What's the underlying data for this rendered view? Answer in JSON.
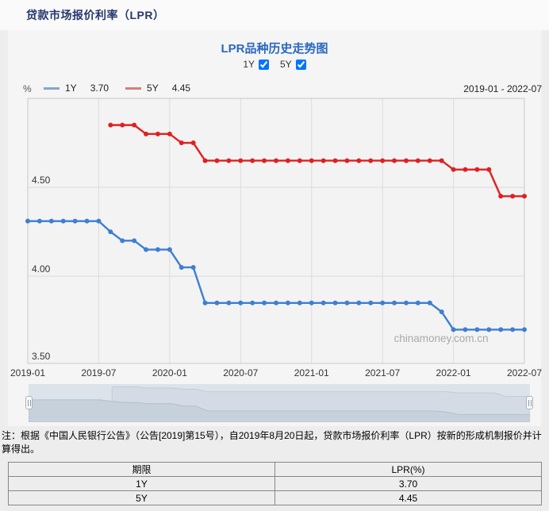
{
  "page": {
    "title": "贷款市场报价利率（LPR）"
  },
  "chart_panel": {
    "title": "LPR品种历史走势图",
    "checkboxes": [
      {
        "label": "1Y",
        "checked": true
      },
      {
        "label": "5Y",
        "checked": true
      }
    ],
    "unit_label": "%",
    "legend": [
      {
        "name": "1Y",
        "value": "3.70",
        "color": "#84a4d3"
      },
      {
        "name": "5Y",
        "value": "4.45",
        "color": "#d97c7c"
      }
    ],
    "date_range": "2019-01 - 2022-07",
    "watermark": "chinamoney.com.cn"
  },
  "chart_data": {
    "type": "line",
    "title": "LPR品种历史走势图",
    "ylabel": "%",
    "xlabel": "",
    "grid": true,
    "legend_position": "top",
    "ylim": [
      3.51,
      5.0
    ],
    "yticks": [
      3.5,
      4.0,
      4.5
    ],
    "ytick_labels": [
      "3.50",
      "4.00",
      "4.50"
    ],
    "xticks": [
      "2019-01",
      "2019-07",
      "2020-01",
      "2020-07",
      "2021-01",
      "2021-07",
      "2022-01",
      "2022-07"
    ],
    "x": [
      "2019-01",
      "2019-02",
      "2019-03",
      "2019-04",
      "2019-05",
      "2019-06",
      "2019-07",
      "2019-08",
      "2019-09",
      "2019-10",
      "2019-11",
      "2019-12",
      "2020-01",
      "2020-02",
      "2020-03",
      "2020-04",
      "2020-05",
      "2020-06",
      "2020-07",
      "2020-08",
      "2020-09",
      "2020-10",
      "2020-11",
      "2020-12",
      "2021-01",
      "2021-02",
      "2021-03",
      "2021-04",
      "2021-05",
      "2021-06",
      "2021-07",
      "2021-08",
      "2021-09",
      "2021-10",
      "2021-11",
      "2021-12",
      "2022-01",
      "2022-02",
      "2022-03",
      "2022-04",
      "2022-05",
      "2022-06",
      "2022-07"
    ],
    "series": [
      {
        "name": "1Y",
        "color": "#3e7fd0",
        "values": [
          4.31,
          4.31,
          4.31,
          4.31,
          4.31,
          4.31,
          4.31,
          4.25,
          4.2,
          4.2,
          4.15,
          4.15,
          4.15,
          4.05,
          4.05,
          3.85,
          3.85,
          3.85,
          3.85,
          3.85,
          3.85,
          3.85,
          3.85,
          3.85,
          3.85,
          3.85,
          3.85,
          3.85,
          3.85,
          3.85,
          3.85,
          3.85,
          3.85,
          3.85,
          3.85,
          3.8,
          3.7,
          3.7,
          3.7,
          3.7,
          3.7,
          3.7,
          3.7
        ]
      },
      {
        "name": "5Y",
        "color": "#e02020",
        "values": [
          null,
          null,
          null,
          null,
          null,
          null,
          null,
          4.85,
          4.85,
          4.85,
          4.8,
          4.8,
          4.8,
          4.75,
          4.75,
          4.65,
          4.65,
          4.65,
          4.65,
          4.65,
          4.65,
          4.65,
          4.65,
          4.65,
          4.65,
          4.65,
          4.65,
          4.65,
          4.65,
          4.65,
          4.65,
          4.65,
          4.65,
          4.65,
          4.65,
          4.65,
          4.6,
          4.6,
          4.6,
          4.6,
          4.45,
          4.45,
          4.45
        ]
      }
    ]
  },
  "note": "注：根据《中国人民银行公告》（公告[2019]第15号），自2019年8月20日起，贷款市场报价利率（LPR）按新的形成机制报价并计算得出。",
  "table": {
    "headers": [
      "期限",
      "LPR(%)"
    ],
    "rows": [
      [
        "1Y",
        "3.70"
      ],
      [
        "5Y",
        "4.45"
      ]
    ]
  }
}
